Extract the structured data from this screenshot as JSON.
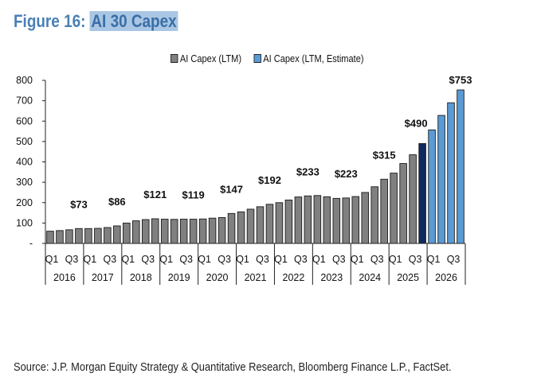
{
  "figure": {
    "prefix": "Figure 16: ",
    "highlighted_title": "AI 30 Capex"
  },
  "legend": [
    {
      "label": "AI Capex (LTM)",
      "color": "#808080"
    },
    {
      "label": "AI Capex (LTM, Estimate)",
      "color": "#5b9bd5"
    }
  ],
  "source": "Source: J.P. Morgan Equity Strategy & Quantitative Research, Bloomberg Finance L.P., FactSet.",
  "chart_data": {
    "type": "bar",
    "title": "AI 30 Capex",
    "xlabel": "",
    "ylabel": "",
    "ylim": [
      0,
      800
    ],
    "yticks": [
      0,
      100,
      200,
      300,
      400,
      500,
      600,
      700,
      800
    ],
    "ytick_labels": [
      "-",
      "100",
      "200",
      "300",
      "400",
      "500",
      "600",
      "700",
      "800"
    ],
    "grid": false,
    "legend_position": "top-center",
    "years": [
      "2016",
      "2017",
      "2018",
      "2019",
      "2020",
      "2021",
      "2022",
      "2023",
      "2024",
      "2025",
      "2026"
    ],
    "quarter_labels": [
      "Q1",
      "Q3"
    ],
    "categories": [
      "2016Q1",
      "2016Q2",
      "2016Q3",
      "2016Q4",
      "2017Q1",
      "2017Q2",
      "2017Q3",
      "2017Q4",
      "2018Q1",
      "2018Q2",
      "2018Q3",
      "2018Q4",
      "2019Q1",
      "2019Q2",
      "2019Q3",
      "2019Q4",
      "2020Q1",
      "2020Q2",
      "2020Q3",
      "2020Q4",
      "2021Q1",
      "2021Q2",
      "2021Q3",
      "2021Q4",
      "2022Q1",
      "2022Q2",
      "2022Q3",
      "2022Q4",
      "2023Q1",
      "2023Q2",
      "2023Q3",
      "2023Q4",
      "2024Q1",
      "2024Q2",
      "2024Q3",
      "2024Q4",
      "2025Q1",
      "2025Q2",
      "2025Q3",
      "2025Q4",
      "2026Q1",
      "2026Q2",
      "2026Q3",
      "2026Q4"
    ],
    "values": [
      60,
      63,
      67,
      73,
      73,
      74,
      78,
      86,
      100,
      111,
      117,
      121,
      119,
      118,
      119,
      119,
      120,
      124,
      127,
      147,
      155,
      168,
      180,
      192,
      200,
      213,
      228,
      233,
      235,
      229,
      221,
      223,
      230,
      250,
      278,
      315,
      345,
      392,
      435,
      490,
      557,
      628,
      690,
      753
    ],
    "series_type": [
      "actual",
      "actual",
      "actual",
      "actual",
      "actual",
      "actual",
      "actual",
      "actual",
      "actual",
      "actual",
      "actual",
      "actual",
      "actual",
      "actual",
      "actual",
      "actual",
      "actual",
      "actual",
      "actual",
      "actual",
      "actual",
      "actual",
      "actual",
      "actual",
      "actual",
      "actual",
      "actual",
      "actual",
      "actual",
      "actual",
      "actual",
      "actual",
      "actual",
      "actual",
      "actual",
      "actual",
      "actual",
      "actual",
      "actual",
      "current",
      "estimate",
      "estimate",
      "estimate",
      "estimate"
    ],
    "colors": {
      "actual": "#808080",
      "current": "#0f2a5e",
      "estimate": "#5b9bd5",
      "outline": "#1a1a1a"
    },
    "data_labels": [
      {
        "index": 3,
        "text": "$73"
      },
      {
        "index": 7,
        "text": "$86"
      },
      {
        "index": 11,
        "text": "$121"
      },
      {
        "index": 15,
        "text": "$119"
      },
      {
        "index": 19,
        "text": "$147"
      },
      {
        "index": 23,
        "text": "$192"
      },
      {
        "index": 27,
        "text": "$233"
      },
      {
        "index": 31,
        "text": "$223"
      },
      {
        "index": 35,
        "text": "$315"
      },
      {
        "index": 39,
        "text": "$490"
      },
      {
        "index": 43,
        "text": "$753"
      }
    ]
  }
}
